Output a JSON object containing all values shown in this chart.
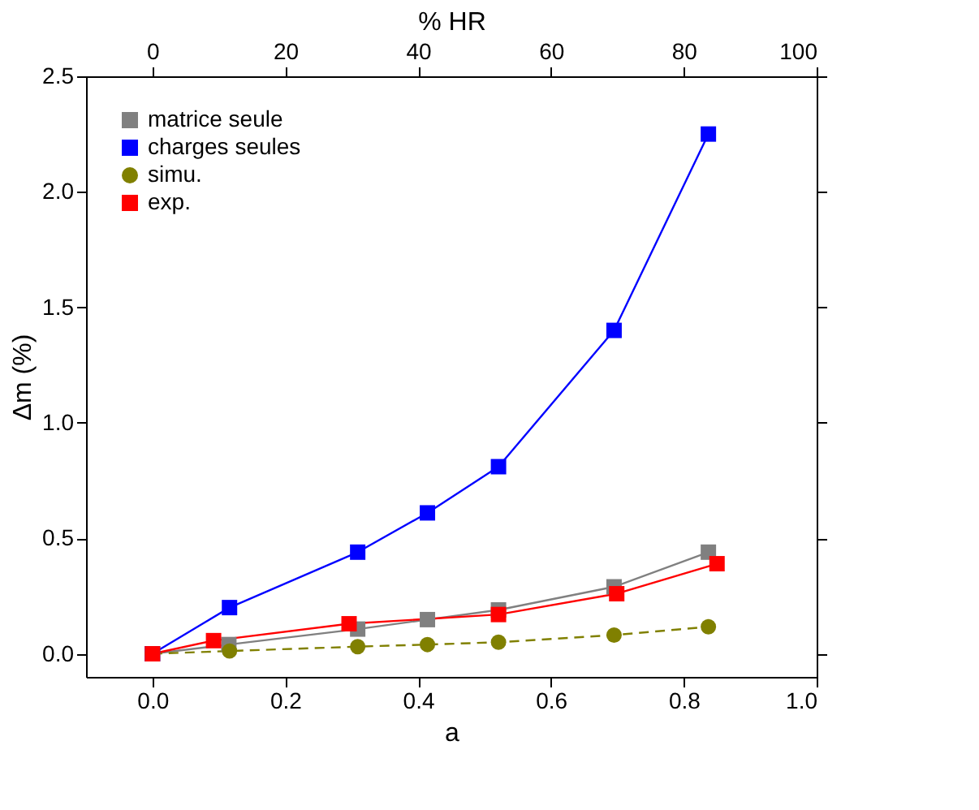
{
  "chart_data": {
    "type": "line",
    "xlabel": "a",
    "ylabel": "Δm (%)",
    "x2label": "% HR",
    "xlim": [
      -0.1,
      1.0
    ],
    "xticks": [
      {
        "value": 0,
        "label": "0.0"
      },
      0.2,
      0.4,
      0.6,
      0.8,
      {
        "value": 1,
        "label": "1.0"
      }
    ],
    "ylim": [
      -0.1,
      2.5
    ],
    "yticks": [
      {
        "value": 0,
        "label": "0.0"
      },
      0.5,
      {
        "value": 1,
        "label": "1.0"
      },
      1.5,
      {
        "value": 2,
        "label": "2.0"
      },
      2.5
    ],
    "x2lim": [
      -10,
      100
    ],
    "x2ticks": [
      0,
      20,
      40,
      60,
      80,
      100
    ],
    "grid": false,
    "legend": "top left",
    "series": [
      {
        "name": "matrice seule",
        "color": "#808080",
        "marker": "square",
        "line_style": "solid",
        "x": [
          0,
          0.115,
          0.309,
          0.414,
          0.521,
          0.695,
          0.837
        ],
        "values": [
          0,
          0.04,
          0.107,
          0.148,
          0.19,
          0.29,
          0.44
        ]
      },
      {
        "name": "charges seules",
        "color": "#0000ff",
        "marker": "square",
        "line_style": "solid",
        "x": [
          0,
          0.116,
          0.309,
          0.414,
          0.521,
          0.695,
          0.837
        ],
        "values": [
          0,
          0.2,
          0.44,
          0.61,
          0.81,
          1.4,
          2.25
        ]
      },
      {
        "name": "simu.",
        "color": "#808000",
        "marker": "circle",
        "line_style": "dashed",
        "x": [
          0,
          0.116,
          0.309,
          0.414,
          0.521,
          0.695,
          0.837
        ],
        "values": [
          0,
          0.012,
          0.031,
          0.04,
          0.05,
          0.081,
          0.117
        ]
      },
      {
        "name": "exp.",
        "color": "#ff0000",
        "marker": "square",
        "line_style": "solid",
        "x": [
          0,
          0.092,
          0.296,
          0.521,
          0.699,
          0.85
        ],
        "values": [
          0,
          0.057,
          0.13,
          0.17,
          0.26,
          0.39
        ]
      }
    ]
  }
}
